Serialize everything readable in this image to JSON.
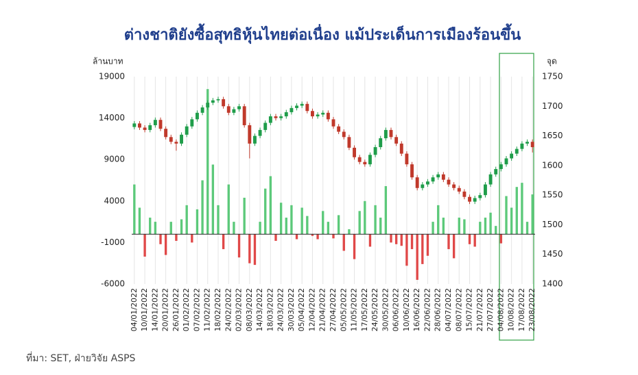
{
  "chart_data": {
    "type": "combo",
    "title": "ต่างชาติยังซื้อสุทธิหุ้นไทยต่อเนื่อง แม้ประเด็นการเมืองร้อนขึ้น",
    "y_label": "ล้านบาท",
    "y2_label": "จุด",
    "source": "ที่มา: SET, ฝ่ายวิจัย ASPS",
    "categories": [
      "04/01/2022",
      null,
      "10/01/2022",
      null,
      "14/01/2022",
      null,
      "20/01/2022",
      null,
      "26/01/2022",
      null,
      "01/02/2022",
      null,
      "07/02/2022",
      null,
      "11/02/2022",
      null,
      "18/02/2022",
      null,
      "24/02/2022",
      null,
      "02/03/2022",
      null,
      "08/03/2022",
      null,
      "14/03/2022",
      null,
      "18/03/2022",
      null,
      "24/03/2022",
      null,
      "30/03/2022",
      null,
      "05/04/2022",
      null,
      "12/04/2022",
      null,
      "21/04/2022",
      null,
      "27/04/2022",
      null,
      "05/05/2022",
      null,
      "11/05/2022",
      null,
      "17/05/2022",
      null,
      "24/05/2022",
      null,
      "30/05/2022",
      null,
      "06/06/2022",
      null,
      "10/06/2022",
      null,
      "16/06/2022",
      null,
      "22/06/2022",
      null,
      "28/06/2022",
      null,
      "04/07/2022",
      null,
      "08/07/2022",
      null,
      "15/07/2022",
      null,
      "21/07/2022",
      null,
      "27/07/2022",
      null,
      "04/08/2022",
      null,
      "10/08/2022",
      null,
      "17/08/2022",
      null,
      "23/08/2022"
    ],
    "ylim": [
      -6000,
      19000
    ],
    "yticks": [
      -6000,
      -1000,
      4000,
      9000,
      14000,
      19000
    ],
    "y2lim": [
      1400,
      1750
    ],
    "y2ticks": [
      1400,
      1450,
      1500,
      1550,
      1600,
      1650,
      1700,
      1750
    ],
    "xgrid": true,
    "series": [
      {
        "type": "bar",
        "axis": "y",
        "color": "#5cc97a",
        "negative_color": "#e04848",
        "values": [
          6000,
          3200,
          -2700,
          2000,
          1500,
          -1200,
          -2500,
          1500,
          -800,
          1800,
          3500,
          -1000,
          3000,
          6500,
          17500,
          8400,
          3500,
          -1800,
          6000,
          1500,
          -2800,
          4400,
          -3500,
          -3700,
          1500,
          5500,
          7000,
          -800,
          3800,
          2000,
          3500,
          -600,
          3200,
          2200,
          -200,
          -600,
          2800,
          1500,
          -500,
          2300,
          -2000,
          600,
          -3000,
          2800,
          4000,
          -1500,
          3500,
          2000,
          5800,
          -1000,
          -1200,
          -1400,
          -3800,
          -1800,
          -5500,
          -3600,
          -2600,
          1500,
          3500,
          2000,
          -1800,
          -2900,
          2000,
          1800,
          -1200,
          -1500,
          1500,
          2000,
          2600,
          1000,
          -1100,
          4600,
          3200,
          5700,
          6200,
          1500,
          4800
        ]
      },
      {
        "type": "candlestick",
        "axis": "y2",
        "up_color": "#1f9d4a",
        "down_color": "#c0392b",
        "open": [
          1665,
          1671,
          1664,
          1660,
          1668,
          1677,
          1662,
          1648,
          1640,
          1637,
          1652,
          1666,
          1678,
          1689,
          1698,
          1706,
          1710,
          1712,
          1700,
          1689,
          1695,
          1700,
          1668,
          1637,
          1650,
          1660,
          1672,
          1683,
          1680,
          1683,
          1690,
          1697,
          1701,
          1704,
          1692,
          1683,
          1686,
          1689,
          1678,
          1666,
          1657,
          1648,
          1630,
          1614,
          1606,
          1602,
          1618,
          1631,
          1646,
          1660,
          1648,
          1637,
          1620,
          1602,
          1580,
          1562,
          1568,
          1573,
          1580,
          1585,
          1576,
          1568,
          1562,
          1556,
          1547,
          1539,
          1545,
          1550,
          1568,
          1585,
          1594,
          1602,
          1612,
          1620,
          1628,
          1637,
          1640
        ],
        "high": [
          1675,
          1675,
          1668,
          1672,
          1681,
          1681,
          1666,
          1652,
          1644,
          1656,
          1670,
          1682,
          1693,
          1702,
          1710,
          1714,
          1716,
          1716,
          1704,
          1699,
          1704,
          1704,
          1672,
          1654,
          1664,
          1676,
          1687,
          1687,
          1687,
          1694,
          1701,
          1705,
          1708,
          1708,
          1696,
          1690,
          1693,
          1693,
          1682,
          1670,
          1661,
          1652,
          1634,
          1618,
          1610,
          1622,
          1635,
          1650,
          1664,
          1664,
          1652,
          1641,
          1624,
          1606,
          1584,
          1572,
          1577,
          1584,
          1589,
          1589,
          1580,
          1572,
          1566,
          1560,
          1551,
          1549,
          1554,
          1572,
          1589,
          1598,
          1606,
          1616,
          1624,
          1632,
          1641,
          1644,
          1644
        ],
        "low": [
          1661,
          1660,
          1656,
          1656,
          1664,
          1658,
          1644,
          1636,
          1625,
          1633,
          1648,
          1662,
          1674,
          1685,
          1694,
          1702,
          1706,
          1696,
          1685,
          1685,
          1691,
          1664,
          1612,
          1633,
          1646,
          1656,
          1668,
          1676,
          1676,
          1679,
          1686,
          1693,
          1697,
          1688,
          1679,
          1679,
          1682,
          1674,
          1662,
          1653,
          1644,
          1626,
          1610,
          1602,
          1598,
          1598,
          1614,
          1627,
          1642,
          1644,
          1633,
          1616,
          1598,
          1576,
          1558,
          1558,
          1564,
          1569,
          1576,
          1572,
          1564,
          1558,
          1552,
          1543,
          1535,
          1535,
          1541,
          1546,
          1564,
          1581,
          1590,
          1598,
          1608,
          1616,
          1624,
          1633,
          1622
        ],
        "close": [
          1671,
          1664,
          1660,
          1668,
          1677,
          1662,
          1648,
          1640,
          1637,
          1652,
          1666,
          1678,
          1689,
          1698,
          1706,
          1710,
          1712,
          1700,
          1689,
          1695,
          1700,
          1668,
          1637,
          1650,
          1660,
          1672,
          1683,
          1680,
          1683,
          1690,
          1697,
          1701,
          1704,
          1692,
          1683,
          1686,
          1689,
          1678,
          1666,
          1657,
          1648,
          1630,
          1614,
          1606,
          1602,
          1618,
          1631,
          1646,
          1660,
          1648,
          1637,
          1620,
          1602,
          1580,
          1562,
          1568,
          1573,
          1580,
          1585,
          1576,
          1568,
          1562,
          1556,
          1547,
          1539,
          1545,
          1550,
          1568,
          1585,
          1594,
          1602,
          1612,
          1620,
          1628,
          1637,
          1640,
          1631
        ]
      }
    ]
  }
}
